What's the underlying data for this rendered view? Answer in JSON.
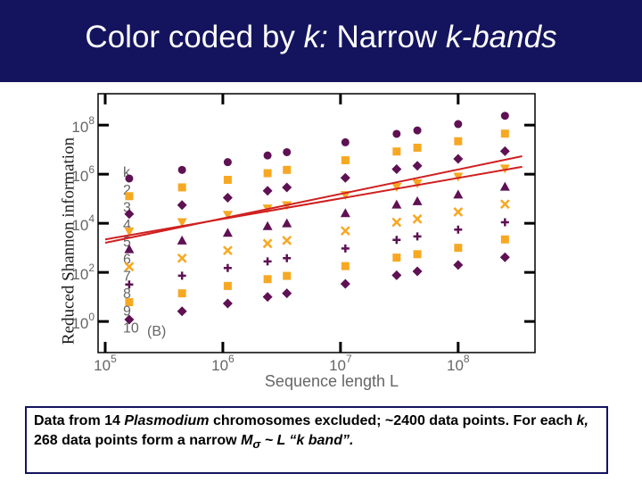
{
  "title_runs": [
    {
      "text": "Color coded by "
    },
    {
      "text": "k:",
      "italic": true
    },
    {
      "text": " Narrow "
    },
    {
      "text": "k-bands",
      "italic": true
    }
  ],
  "caption_runs": [
    {
      "text": "Data from 14 "
    },
    {
      "text": "Plasmodium",
      "italic": true
    },
    {
      "text": " chromosomes excluded; ~2400 data points.  For each "
    },
    {
      "text": "k,",
      "italic": true
    },
    {
      "text": " 268 data points  form a narrow "
    },
    {
      "text": "M",
      "italic": true
    },
    {
      "text": "σ",
      "italic": true,
      "sub": true
    },
    {
      "text": " ~ L “k band”.",
      "italic": true
    }
  ],
  "chart_data": {
    "type": "scatter",
    "x_label": "Sequence length L",
    "y_label": "Reduced Shannon information",
    "log_x": true,
    "log_y": true,
    "legend_title": "k",
    "annotation": "(B)",
    "xlim": [
      87000,
      450000000
    ],
    "ylim": [
      0.054,
      1900000000
    ],
    "xticks": [
      {
        "value": 100000,
        "label": "10",
        "power": "5"
      },
      {
        "value": 1000000,
        "label": "10",
        "power": "6"
      },
      {
        "value": 10000000,
        "label": "10",
        "power": "7"
      },
      {
        "value": 100000000,
        "label": "10",
        "power": "8"
      }
    ],
    "yticks": [
      {
        "value": 1,
        "label": "10",
        "power": "0"
      },
      {
        "value": 100,
        "label": "10",
        "power": "2"
      },
      {
        "value": 10000,
        "label": "10",
        "power": "4"
      },
      {
        "value": 1000000,
        "label": "10",
        "power": "6"
      },
      {
        "value": 100000000,
        "label": "10",
        "power": "8"
      }
    ],
    "x": [
      160000,
      450000,
      1100000,
      2400000,
      3500000,
      11000000,
      30000000,
      45000000,
      100000000,
      250000000
    ],
    "series": [
      {
        "name": "2",
        "color": "#5e1153",
        "marker": "circle",
        "values": [
          670000,
          1500000,
          3100000,
          5800000,
          7900000,
          20000000,
          44000000,
          61000000,
          110000000,
          240000000
        ]
      },
      {
        "name": "3",
        "color": "#f7a823",
        "marker": "square",
        "values": [
          127000,
          290000,
          590000,
          1100000,
          1500000,
          3700000,
          8400000,
          12000000,
          22000000,
          45000000
        ]
      },
      {
        "name": "4",
        "color": "#5e1153",
        "marker": "diamond",
        "values": [
          24000,
          55000,
          110000,
          210000,
          290000,
          710000,
          1600000,
          2200000,
          4200000,
          8700000
        ]
      },
      {
        "name": "5",
        "color": "#f7a823",
        "marker": "triangle-down",
        "values": [
          4600,
          11000,
          22000,
          40000,
          54000,
          140000,
          300000,
          420000,
          790000,
          1700000
        ]
      },
      {
        "name": "6",
        "color": "#5e1153",
        "marker": "triangle",
        "values": [
          880,
          2000,
          4100,
          7700,
          10000,
          26000,
          58000,
          80000,
          150000,
          310000
        ]
      },
      {
        "name": "7",
        "color": "#f7a823",
        "marker": "x",
        "values": [
          170,
          380,
          780,
          1500,
          2000,
          4900,
          11000,
          15000,
          29000,
          60000
        ]
      },
      {
        "name": "8",
        "color": "#5e1153",
        "marker": "plus",
        "values": [
          32,
          73,
          150,
          280,
          380,
          940,
          2100,
          2900,
          5500,
          11000
        ]
      },
      {
        "name": "9",
        "color": "#f7a823",
        "marker": "square",
        "values": [
          6.1,
          14,
          28,
          53,
          72,
          180,
          400,
          550,
          1000,
          2200
        ]
      },
      {
        "name": "10",
        "color": "#5e1153",
        "marker": "diamond",
        "values": [
          1.2,
          2.6,
          5.4,
          10,
          14,
          34,
          76,
          110,
          200,
          410
        ]
      }
    ],
    "fit_lines": [
      {
        "color": "#d02020",
        "x": [
          100000,
          350000000
        ],
        "y": [
          1600,
          5400000
        ]
      },
      {
        "color": "#d02020",
        "x": [
          100000,
          350000000
        ],
        "y": [
          2200,
          2000000
        ]
      }
    ]
  }
}
